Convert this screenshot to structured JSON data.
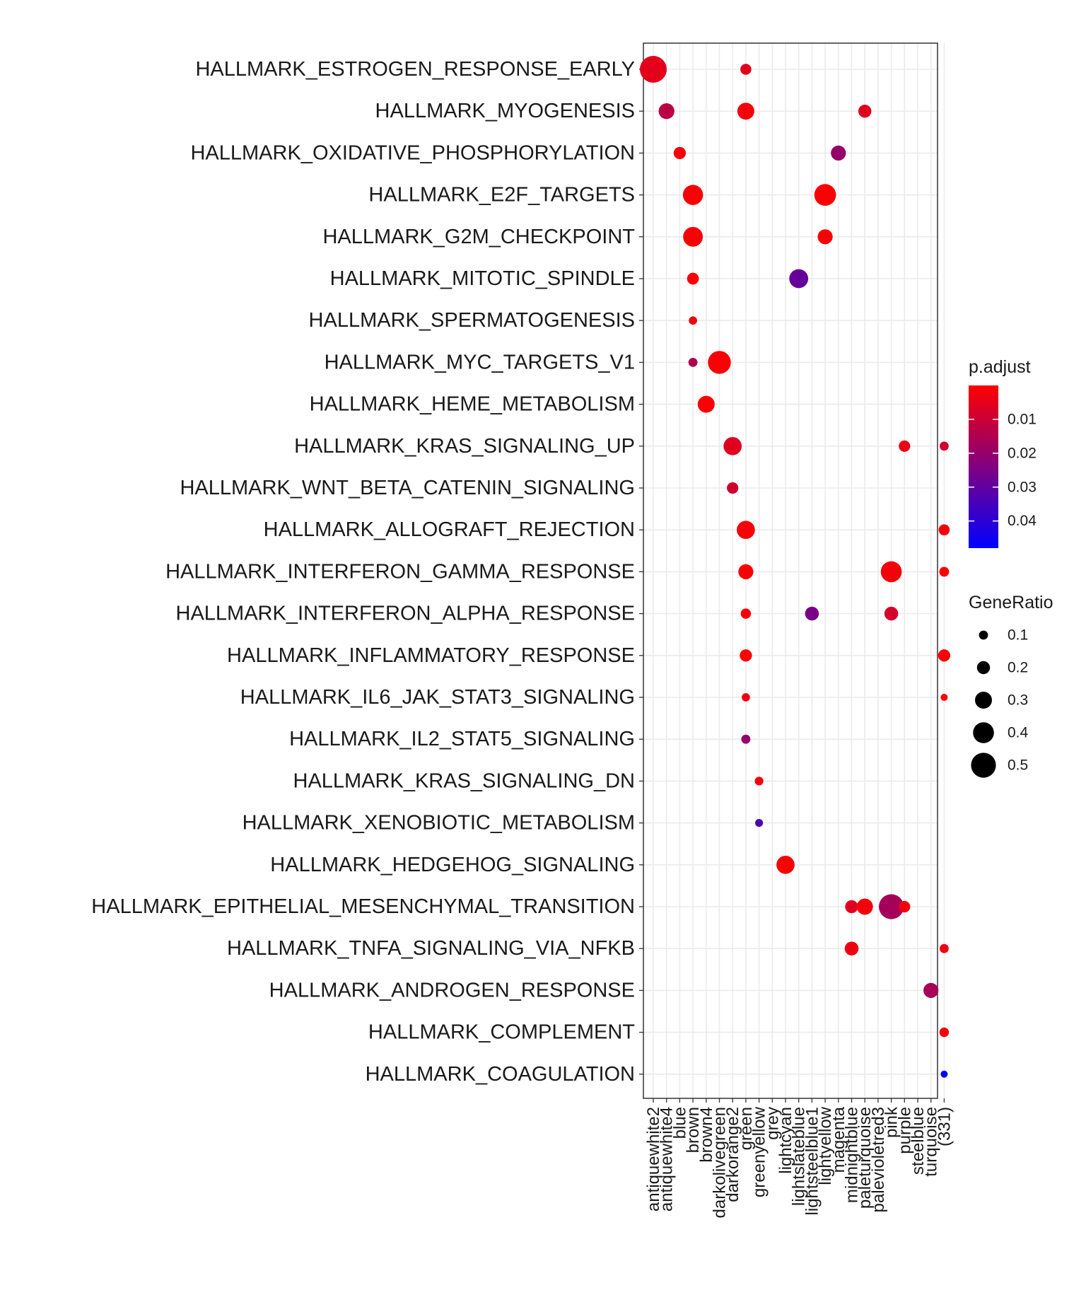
{
  "chart_data": {
    "type": "scatter",
    "title": "",
    "xlabel": "",
    "ylabel": "",
    "grid": true,
    "legend_position": "right",
    "y_categories": [
      "HALLMARK_ESTROGEN_RESPONSE_EARLY",
      "HALLMARK_MYOGENESIS",
      "HALLMARK_OXIDATIVE_PHOSPHORYLATION",
      "HALLMARK_E2F_TARGETS",
      "HALLMARK_G2M_CHECKPOINT",
      "HALLMARK_MITOTIC_SPINDLE",
      "HALLMARK_SPERMATOGENESIS",
      "HALLMARK_MYC_TARGETS_V1",
      "HALLMARK_HEME_METABOLISM",
      "HALLMARK_KRAS_SIGNALING_UP",
      "HALLMARK_WNT_BETA_CATENIN_SIGNALING",
      "HALLMARK_ALLOGRAFT_REJECTION",
      "HALLMARK_INTERFERON_GAMMA_RESPONSE",
      "HALLMARK_INTERFERON_ALPHA_RESPONSE",
      "HALLMARK_INFLAMMATORY_RESPONSE",
      "HALLMARK_IL6_JAK_STAT3_SIGNALING",
      "HALLMARK_IL2_STAT5_SIGNALING",
      "HALLMARK_KRAS_SIGNALING_DN",
      "HALLMARK_XENOBIOTIC_METABOLISM",
      "HALLMARK_HEDGEHOG_SIGNALING",
      "HALLMARK_EPITHELIAL_MESENCHYMAL_TRANSITION",
      "HALLMARK_TNFA_SIGNALING_VIA_NFKB",
      "HALLMARK_ANDROGEN_RESPONSE",
      "HALLMARK_COMPLEMENT",
      "HALLMARK_COAGULATION"
    ],
    "x_categories": [
      "antiquewhite2",
      "antiquewhite4",
      "blue",
      "brown",
      "brown4",
      "darkolivegreen",
      "darkorange2",
      "green",
      "greenyellow",
      "grey",
      "lightcyan",
      "lightslateblue",
      "lightsteelblue1",
      "lightyellow",
      "magenta",
      "midnightblue",
      "paleturquoise",
      "palevioletred3",
      "pink",
      "purple",
      "steelblue",
      "turquoise",
      "(331)"
    ],
    "points": [
      {
        "x": "antiquewhite2",
        "y": "HALLMARK_ESTROGEN_RESPONSE_EARLY",
        "gene_ratio": 0.55,
        "p_adjust": 0.005
      },
      {
        "x": "green",
        "y": "HALLMARK_ESTROGEN_RESPONSE_EARLY",
        "gene_ratio": 0.15,
        "p_adjust": 0.006
      },
      {
        "x": "antiquewhite4",
        "y": "HALLMARK_MYOGENESIS",
        "gene_ratio": 0.27,
        "p_adjust": 0.013
      },
      {
        "x": "green",
        "y": "HALLMARK_MYOGENESIS",
        "gene_ratio": 0.3,
        "p_adjust": 0.002
      },
      {
        "x": "paleturquoise",
        "y": "HALLMARK_MYOGENESIS",
        "gene_ratio": 0.2,
        "p_adjust": 0.006
      },
      {
        "x": "blue",
        "y": "HALLMARK_OXIDATIVE_PHOSPHORYLATION",
        "gene_ratio": 0.18,
        "p_adjust": 0.002
      },
      {
        "x": "magenta",
        "y": "HALLMARK_OXIDATIVE_PHOSPHORYLATION",
        "gene_ratio": 0.25,
        "p_adjust": 0.02
      },
      {
        "x": "brown",
        "y": "HALLMARK_E2F_TARGETS",
        "gene_ratio": 0.38,
        "p_adjust": 0.001
      },
      {
        "x": "lightyellow",
        "y": "HALLMARK_E2F_TARGETS",
        "gene_ratio": 0.42,
        "p_adjust": 0.001
      },
      {
        "x": "brown",
        "y": "HALLMARK_G2M_CHECKPOINT",
        "gene_ratio": 0.37,
        "p_adjust": 0.001
      },
      {
        "x": "lightyellow",
        "y": "HALLMARK_G2M_CHECKPOINT",
        "gene_ratio": 0.25,
        "p_adjust": 0.001
      },
      {
        "x": "brown",
        "y": "HALLMARK_MITOTIC_SPINDLE",
        "gene_ratio": 0.17,
        "p_adjust": 0.001
      },
      {
        "x": "lightslateblue",
        "y": "HALLMARK_MITOTIC_SPINDLE",
        "gene_ratio": 0.35,
        "p_adjust": 0.029
      },
      {
        "x": "brown",
        "y": "HALLMARK_SPERMATOGENESIS",
        "gene_ratio": 0.08,
        "p_adjust": 0.003
      },
      {
        "x": "brown",
        "y": "HALLMARK_MYC_TARGETS_V1",
        "gene_ratio": 0.1,
        "p_adjust": 0.015
      },
      {
        "x": "darkolivegreen",
        "y": "HALLMARK_MYC_TARGETS_V1",
        "gene_ratio": 0.45,
        "p_adjust": 0.001
      },
      {
        "x": "brown4",
        "y": "HALLMARK_HEME_METABOLISM",
        "gene_ratio": 0.3,
        "p_adjust": 0.001
      },
      {
        "x": "darkorange2",
        "y": "HALLMARK_KRAS_SIGNALING_UP",
        "gene_ratio": 0.33,
        "p_adjust": 0.006
      },
      {
        "x": "purple",
        "y": "HALLMARK_KRAS_SIGNALING_UP",
        "gene_ratio": 0.16,
        "p_adjust": 0.004
      },
      {
        "x": "(331)",
        "y": "HALLMARK_KRAS_SIGNALING_UP",
        "gene_ratio": 0.1,
        "p_adjust": 0.009
      },
      {
        "x": "darkorange2",
        "y": "HALLMARK_WNT_BETA_CATENIN_SIGNALING",
        "gene_ratio": 0.16,
        "p_adjust": 0.009
      },
      {
        "x": "green",
        "y": "HALLMARK_ALLOGRAFT_REJECTION",
        "gene_ratio": 0.33,
        "p_adjust": 0.001
      },
      {
        "x": "(331)",
        "y": "HALLMARK_ALLOGRAFT_REJECTION",
        "gene_ratio": 0.15,
        "p_adjust": 0.002
      },
      {
        "x": "green",
        "y": "HALLMARK_INTERFERON_GAMMA_RESPONSE",
        "gene_ratio": 0.25,
        "p_adjust": 0.001
      },
      {
        "x": "pink",
        "y": "HALLMARK_INTERFERON_GAMMA_RESPONSE",
        "gene_ratio": 0.4,
        "p_adjust": 0.002
      },
      {
        "x": "(331)",
        "y": "HALLMARK_INTERFERON_GAMMA_RESPONSE",
        "gene_ratio": 0.12,
        "p_adjust": 0.001
      },
      {
        "x": "green",
        "y": "HALLMARK_INTERFERON_ALPHA_RESPONSE",
        "gene_ratio": 0.13,
        "p_adjust": 0.001
      },
      {
        "x": "lightsteelblue1",
        "y": "HALLMARK_INTERFERON_ALPHA_RESPONSE",
        "gene_ratio": 0.22,
        "p_adjust": 0.025
      },
      {
        "x": "pink",
        "y": "HALLMARK_INTERFERON_ALPHA_RESPONSE",
        "gene_ratio": 0.22,
        "p_adjust": 0.008
      },
      {
        "x": "green",
        "y": "HALLMARK_INFLAMMATORY_RESPONSE",
        "gene_ratio": 0.18,
        "p_adjust": 0.001
      },
      {
        "x": "(331)",
        "y": "HALLMARK_INFLAMMATORY_RESPONSE",
        "gene_ratio": 0.18,
        "p_adjust": 0.001
      },
      {
        "x": "green",
        "y": "HALLMARK_IL6_JAK_STAT3_SIGNALING",
        "gene_ratio": 0.08,
        "p_adjust": 0.003
      },
      {
        "x": "(331)",
        "y": "HALLMARK_IL6_JAK_STAT3_SIGNALING",
        "gene_ratio": 0.05,
        "p_adjust": 0.001
      },
      {
        "x": "green",
        "y": "HALLMARK_IL2_STAT5_SIGNALING",
        "gene_ratio": 0.1,
        "p_adjust": 0.02
      },
      {
        "x": "greenyellow",
        "y": "HALLMARK_KRAS_SIGNALING_DN",
        "gene_ratio": 0.09,
        "p_adjust": 0.002
      },
      {
        "x": "greenyellow",
        "y": "HALLMARK_XENOBIOTIC_METABOLISM",
        "gene_ratio": 0.07,
        "p_adjust": 0.033
      },
      {
        "x": "lightcyan",
        "y": "HALLMARK_HEDGEHOG_SIGNALING",
        "gene_ratio": 0.33,
        "p_adjust": 0.001
      },
      {
        "x": "midnightblue",
        "y": "HALLMARK_EPITHELIAL_MESENCHYMAL_TRANSITION",
        "gene_ratio": 0.2,
        "p_adjust": 0.006
      },
      {
        "x": "paleturquoise",
        "y": "HALLMARK_EPITHELIAL_MESENCHYMAL_TRANSITION",
        "gene_ratio": 0.28,
        "p_adjust": 0.002
      },
      {
        "x": "pink",
        "y": "HALLMARK_EPITHELIAL_MESENCHYMAL_TRANSITION",
        "gene_ratio": 0.5,
        "p_adjust": 0.017
      },
      {
        "x": "purple",
        "y": "HALLMARK_EPITHELIAL_MESENCHYMAL_TRANSITION",
        "gene_ratio": 0.16,
        "p_adjust": 0.002
      },
      {
        "x": "midnightblue",
        "y": "HALLMARK_TNFA_SIGNALING_VIA_NFKB",
        "gene_ratio": 0.22,
        "p_adjust": 0.003
      },
      {
        "x": "(331)",
        "y": "HALLMARK_TNFA_SIGNALING_VIA_NFKB",
        "gene_ratio": 0.1,
        "p_adjust": 0.004
      },
      {
        "x": "turquoise",
        "y": "HALLMARK_ANDROGEN_RESPONSE",
        "gene_ratio": 0.25,
        "p_adjust": 0.017
      },
      {
        "x": "(331)",
        "y": "HALLMARK_COMPLEMENT",
        "gene_ratio": 0.11,
        "p_adjust": 0.002
      },
      {
        "x": "(331)",
        "y": "HALLMARK_COAGULATION",
        "gene_ratio": 0.05,
        "p_adjust": 0.048
      }
    ],
    "color_legend": {
      "title": "p.adjust",
      "ticks": [
        0.01,
        0.02,
        0.03,
        0.04
      ],
      "tick_labels": [
        "0.01",
        "0.02",
        "0.03",
        "0.04"
      ],
      "range": [
        0.0,
        0.048
      ],
      "low_color": "#FF0000",
      "high_color": "#0000FF"
    },
    "size_legend": {
      "title": "GeneRatio",
      "values": [
        0.1,
        0.2,
        0.3,
        0.4,
        0.5
      ],
      "labels": [
        "0.1",
        "0.2",
        "0.3",
        "0.4",
        "0.5"
      ],
      "range": [
        0.05,
        0.55
      ]
    }
  }
}
